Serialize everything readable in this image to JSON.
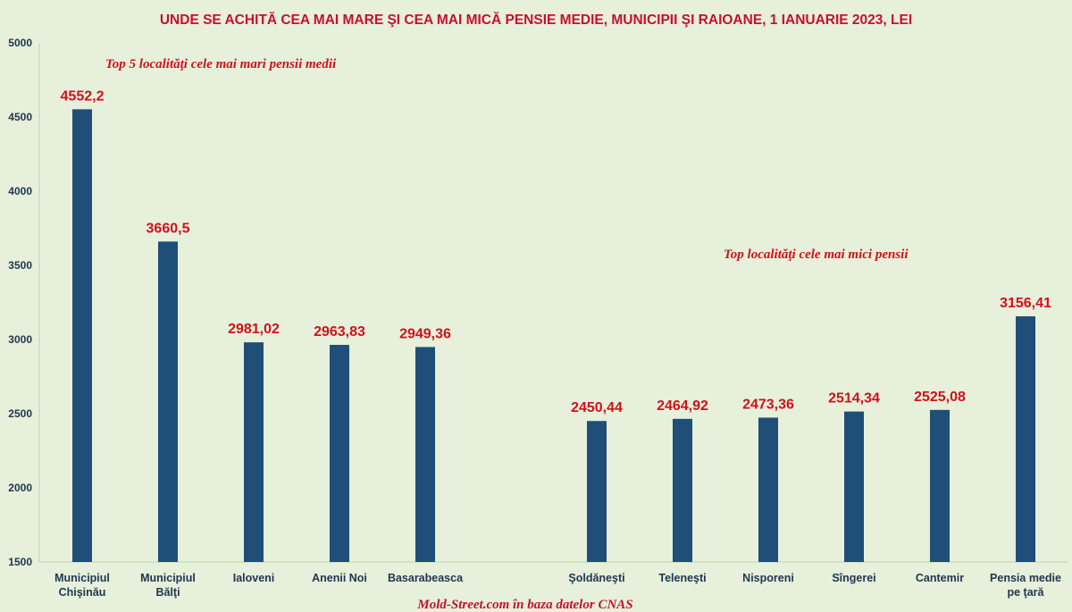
{
  "chart_data": {
    "type": "bar",
    "title": "UNDE SE ACHITĂ CEA MAI MARE ŞI CEA MAI MICĂ PENSIE MEDIE, MUNICIPII ŞI RAIOANE, 1 IANUARIE 2023, LEI",
    "categories": [
      [
        "Municipiul",
        "Chişinău"
      ],
      [
        "Municipiul",
        "Bălţi"
      ],
      [
        "Ialoveni"
      ],
      [
        "Anenii Noi"
      ],
      [
        "Basarabeasca"
      ],
      [],
      [
        "Şoldăneşti"
      ],
      [
        "Teleneşti"
      ],
      [
        "Nisporeni"
      ],
      [
        "Sîngerei"
      ],
      [
        "Cantemir"
      ],
      [
        "Pensia medie",
        "pe ţară"
      ]
    ],
    "values": [
      4552.2,
      3660.5,
      2981.02,
      2963.83,
      2949.36,
      null,
      2450.44,
      2464.92,
      2473.36,
      2514.34,
      2525.08,
      3156.41
    ],
    "value_labels": [
      "4552,2",
      "3660,5",
      "2981,02",
      "2963,83",
      "2949,36",
      "",
      "2450,44",
      "2464,92",
      "2473,36",
      "2514,34",
      "2525,08",
      "3156,41"
    ],
    "ylim": [
      1500,
      5000
    ],
    "yticks": [
      1500,
      2000,
      2500,
      3000,
      3500,
      4000,
      4500,
      5000
    ],
    "grid": false,
    "bar_color": "#1f4e79",
    "label_color": "#d0111b",
    "annotations": [
      "Top 5 localităţi cele mai mari pensii medii",
      "Top localităţi cele mai mici pensii"
    ],
    "source": "Mold-Street.com în baza datelor CNAS"
  }
}
